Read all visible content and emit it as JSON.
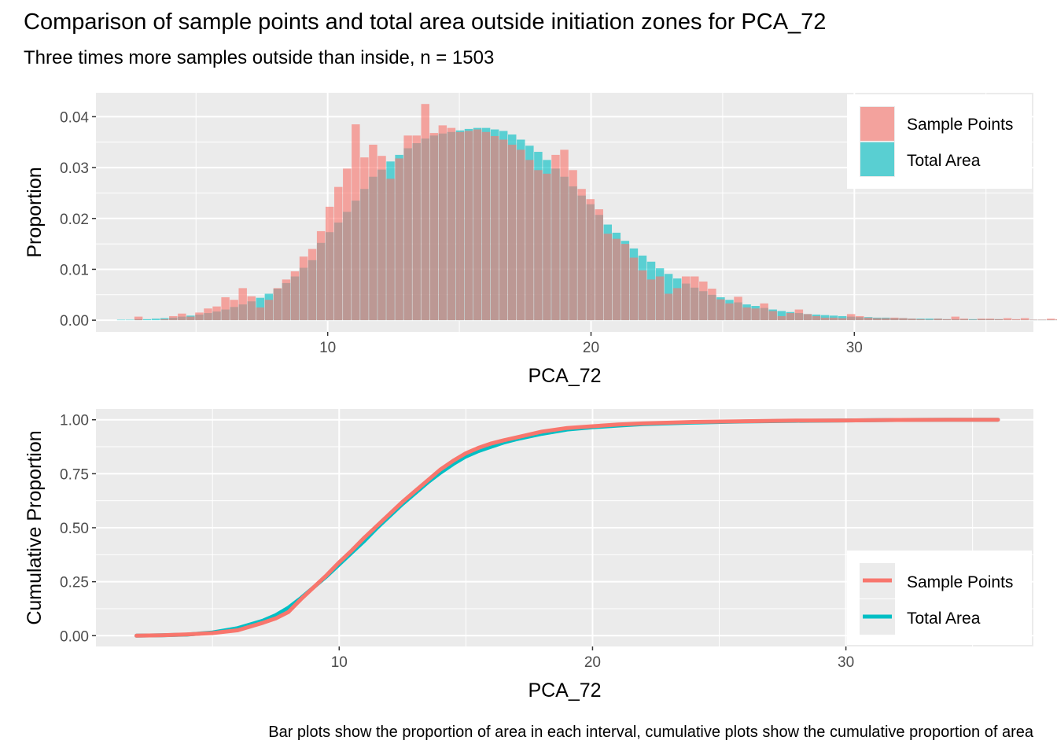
{
  "title": "Comparison of sample points and total area outside initiation zones for PCA_72",
  "subtitle": "Three times more samples outside than inside, n = 1503",
  "caption": "Bar plots show the proportion of area in each interval, cumulative plots show the cumulative proportion of area",
  "colors": {
    "sample": "#F8766D",
    "area": "#00BFC4",
    "panel": "#EBEBEB",
    "grid": "#FFFFFF"
  },
  "chart_data": [
    {
      "type": "bar",
      "xlabel": "PCA_72",
      "ylabel": "Proportion",
      "xlim": [
        1.2,
        36.8
      ],
      "ylim": [
        -0.0023,
        0.0447
      ],
      "x_ticks": [
        10,
        20,
        30
      ],
      "y_ticks": [
        0.0,
        0.01,
        0.02,
        0.03,
        0.04
      ],
      "y_tick_labels": [
        "0.00",
        "0.01",
        "0.02",
        "0.03",
        "0.04"
      ],
      "bin_width": 0.33,
      "legend": {
        "position": "top-right",
        "entries": [
          "Sample Points",
          "Total Area"
        ]
      },
      "bin_start": 2.0,
      "series": [
        {
          "name": "Sample Points",
          "values": [
            0,
            0,
            0.0007,
            0,
            0,
            0.0002,
            0.0008,
            0.0013,
            0.0007,
            0.0015,
            0.0023,
            0.0027,
            0.0045,
            0.004,
            0.0063,
            0.0047,
            0.0025,
            0.004,
            0.0063,
            0.008,
            0.0096,
            0.0125,
            0.014,
            0.0175,
            0.0223,
            0.0262,
            0.0298,
            0.0385,
            0.032,
            0.0345,
            0.0323,
            0.0278,
            0.0318,
            0.0363,
            0.0363,
            0.0425,
            0.0368,
            0.0383,
            0.0378,
            0.037,
            0.0372,
            0.0375,
            0.037,
            0.0362,
            0.0355,
            0.0345,
            0.0335,
            0.0315,
            0.0295,
            0.0288,
            0.0325,
            0.0335,
            0.0295,
            0.0258,
            0.0238,
            0.0218,
            0.017,
            0.016,
            0.015,
            0.0123,
            0.0098,
            0.008,
            0.0086,
            0.0052,
            0.0063,
            0.0086,
            0.0086,
            0.0076,
            0.0062,
            0.0041,
            0.0033,
            0.0046,
            0.0025,
            0.0023,
            0.0033,
            0.0018,
            0.0008,
            0.0014,
            0.0021,
            0.0012,
            0.0008,
            0.0005,
            0.0005,
            0.0004,
            0.0012,
            0.0008,
            0.0005,
            0.0004,
            0.0004,
            0.0005,
            0.0004,
            0.0003,
            0.0002,
            0.0001,
            0.0003,
            0.0002,
            0.0007,
            0.0003,
            0.0001,
            0.0003,
            0.0003,
            0.0002,
            0.0004,
            0.0002,
            0.0004,
            0.0001,
            0.0001,
            0.0003,
            0.0002,
            0.0001,
            0.0001,
            0.0004,
            0.0001,
            0.0001,
            0.0004,
            0.0001,
            0.0002,
            0.0001,
            0.0001,
            0.0001,
            0.0001,
            0.0001,
            0.0001,
            0.0001,
            0.0001,
            0.0001,
            0.0001,
            0.0001,
            0.0001,
            0.0001,
            0.0002,
            0.0001,
            0.0001,
            0.0001,
            0.0001,
            0.0001,
            0.0001,
            0.0001,
            0.0001,
            0.0001,
            0.0001,
            0.0001,
            0.0001,
            0.0001,
            0.0001,
            0.0001,
            0.0001,
            0.0001,
            0.0001,
            0.0001,
            0.0001,
            0.0001,
            0.0001,
            0.0001,
            0.0001,
            0.0001,
            0.0001,
            0.0001,
            0.0001,
            0.0001,
            0.0001,
            0.0001,
            0.0001,
            0.0001,
            0.0001,
            0.0001,
            0.0001,
            0.0001,
            0.0001,
            0.0001,
            0.0001,
            0.0001,
            0.0001,
            0.0001,
            0.0001,
            0.0001,
            0.0001,
            0.0001,
            0.0001,
            0.0001,
            0.0001,
            0.0001,
            0.0001,
            0.0001,
            0.0001,
            0.0001,
            0.0001,
            0.0001,
            0.0001,
            0.0001,
            0.0001,
            0.0001,
            0.0001,
            0.0001,
            0.0001,
            0.0001,
            0.0001,
            0.0001,
            0.0001,
            0.0001,
            0.0001,
            0.0001,
            0.0001,
            0.0001,
            0.0001,
            0.0001,
            0.0001,
            0.0001,
            0.0001,
            0.0001,
            0.0001,
            0.0001,
            0.0001,
            0.0001,
            0.0001,
            0.0001,
            0.0001,
            0.0001,
            0.0001,
            0.0001,
            0.0001,
            0.0001,
            0.0001,
            0.0001,
            0.0001,
            0.0001,
            0.0001,
            0.0001,
            0.0001,
            0.0001,
            0.0001,
            0.0001,
            0.0001,
            0.0001,
            0.0001,
            0.0001,
            0.0001,
            0.0001,
            0.0001,
            0.0001,
            0.0001,
            0.0001,
            0.0001,
            0.0001,
            0.0001,
            0.0001,
            0.0001,
            0.0001,
            0.0001,
            0.0001,
            0.0001
          ]
        },
        {
          "name": "Total Area",
          "values": [
            0.0001,
            0.0001,
            0.0002,
            0.0002,
            0.0003,
            0.0004,
            0.0005,
            0.0007,
            0.0009,
            0.0011,
            0.0014,
            0.0017,
            0.0021,
            0.0026,
            0.0031,
            0.0037,
            0.0044,
            0.0052,
            0.0062,
            0.0073,
            0.0086,
            0.0103,
            0.0118,
            0.0152,
            0.0173,
            0.0192,
            0.0213,
            0.0235,
            0.0258,
            0.0282,
            0.0296,
            0.0312,
            0.0325,
            0.0338,
            0.0348,
            0.0357,
            0.0363,
            0.0367,
            0.037,
            0.0373,
            0.0376,
            0.0378,
            0.0378,
            0.0375,
            0.0372,
            0.0365,
            0.0355,
            0.0343,
            0.0331,
            0.0315,
            0.0298,
            0.0282,
            0.0263,
            0.0245,
            0.0228,
            0.0207,
            0.0188,
            0.0172,
            0.0156,
            0.0141,
            0.0127,
            0.0115,
            0.0102,
            0.0091,
            0.0082,
            0.0072,
            0.0064,
            0.0057,
            0.005,
            0.0045,
            0.004,
            0.0035,
            0.0031,
            0.0028,
            0.0024,
            0.0021,
            0.0018,
            0.0016,
            0.0014,
            0.0012,
            0.0011,
            0.001,
            0.0009,
            0.0008,
            0.0007,
            0.0006,
            0.0006,
            0.0005,
            0.0005,
            0.0004,
            0.0004,
            0.0003,
            0.0003,
            0.0003,
            0.0003,
            0.0002,
            0.0002,
            0.0002,
            0.0002,
            0.0002,
            0.0002,
            0.0002,
            0.0001,
            0.0001,
            0.0001,
            0.0001,
            0.0001,
            0.0001,
            0.0001,
            0.0001,
            0.0001,
            0.0001,
            0.0001,
            0.0001,
            0.0001,
            0.0001,
            0.0001,
            0.0001,
            0.0001,
            0.0001,
            0.0001,
            0.0001,
            0.0001,
            0.0001,
            0.0001,
            0.0001,
            0.0001,
            0.0001,
            0.0001,
            0.0001,
            0.0001,
            0.0001,
            0.0001,
            0.0001,
            0.0001,
            0.0001,
            0.0001,
            0.0001,
            0.0001,
            0.0001,
            0.0001,
            0.0001,
            0.0001,
            0.0001,
            0.0001,
            0.0001,
            0.0001,
            0.0001,
            0.0001,
            0.0001,
            0.0001,
            0.0001,
            0.0001,
            0.0001,
            0.0001,
            0.0001,
            0.0001,
            0.0001,
            0.0001,
            0.0001,
            0.0001,
            0.0001,
            0.0001,
            0.0001,
            0.0001,
            0.0001,
            0.0001,
            0.0001,
            0.0001,
            0.0001,
            0.0001,
            0.0001,
            0.0001,
            0.0001,
            0.0001,
            0.0001,
            0.0001,
            0.0001,
            0.0001,
            0.0001,
            0.0001,
            0.0001,
            0.0001,
            0.0001,
            0.0001,
            0.0001,
            0.0001,
            0.0001,
            0.0001,
            0.0001,
            0.0001,
            0.0001,
            0.0001,
            0.0001,
            0.0001,
            0.0001,
            0.0001,
            0.0001,
            0.0001,
            0.0001,
            0.0001,
            0.0001,
            0.0001,
            0.0001,
            0.0001,
            0.0001,
            0.0001,
            0.0001,
            0.0001,
            0.0001,
            0.0001,
            0.0001,
            0.0001,
            0.0001,
            0.0001,
            0.0001,
            0.0001,
            0.0001,
            0.0001,
            0.0001,
            0.0001,
            0.0001,
            0.0001,
            0.0001,
            0.0001,
            0.0001,
            0.0001,
            0.0001,
            0.0001,
            0.0001,
            0.0001,
            0.0001,
            0.0001,
            0.0001,
            0.0001,
            0.0001,
            0.0001,
            0.0001,
            0.0001,
            0.0001,
            0.0001,
            0.0001,
            0.0001,
            0.0001,
            0.0001,
            0.0001
          ]
        }
      ]
    },
    {
      "type": "line",
      "xlabel": "PCA_72",
      "ylabel": "Cumulative Proportion",
      "xlim": [
        0.4,
        37.4
      ],
      "ylim": [
        -0.05,
        1.05
      ],
      "x_ticks": [
        10,
        20,
        30
      ],
      "y_ticks": [
        0.0,
        0.25,
        0.5,
        0.75,
        1.0
      ],
      "y_tick_labels": [
        "0.00",
        "0.25",
        "0.50",
        "0.75",
        "1.00"
      ],
      "legend": {
        "position": "bottom-right",
        "entries": [
          "Sample Points",
          "Total Area"
        ]
      },
      "series": [
        {
          "name": "Total Area",
          "x": [
            2.0,
            3.0,
            4.0,
            5.0,
            6.0,
            7.0,
            7.5,
            8.0,
            8.5,
            9.0,
            9.5,
            10.0,
            10.5,
            11.0,
            11.5,
            12.0,
            12.5,
            13.0,
            13.5,
            14.0,
            14.5,
            15.0,
            15.5,
            16.0,
            16.5,
            17.0,
            18.0,
            19.0,
            20.0,
            21.0,
            22.0,
            24.0,
            26.0,
            28.0,
            30.0,
            32.0,
            34.0,
            36.0
          ],
          "y": [
            0.0,
            0.002,
            0.005,
            0.015,
            0.035,
            0.07,
            0.095,
            0.13,
            0.175,
            0.225,
            0.275,
            0.33,
            0.385,
            0.44,
            0.5,
            0.555,
            0.61,
            0.66,
            0.71,
            0.755,
            0.795,
            0.83,
            0.855,
            0.875,
            0.895,
            0.91,
            0.935,
            0.955,
            0.965,
            0.973,
            0.98,
            0.987,
            0.992,
            0.995,
            0.997,
            0.999,
            1.0,
            1.0
          ]
        },
        {
          "name": "Sample Points",
          "x": [
            2.0,
            3.0,
            4.0,
            5.0,
            6.0,
            7.0,
            7.5,
            8.0,
            8.5,
            9.0,
            9.5,
            10.0,
            10.5,
            11.0,
            11.5,
            12.0,
            12.5,
            13.0,
            13.5,
            14.0,
            14.5,
            15.0,
            15.5,
            16.0,
            16.5,
            17.0,
            18.0,
            19.0,
            20.0,
            21.0,
            22.0,
            24.0,
            26.0,
            28.0,
            30.0,
            32.0,
            34.0,
            36.0
          ],
          "y": [
            0.0,
            0.002,
            0.006,
            0.012,
            0.025,
            0.06,
            0.08,
            0.11,
            0.17,
            0.225,
            0.28,
            0.34,
            0.395,
            0.455,
            0.51,
            0.565,
            0.62,
            0.67,
            0.72,
            0.77,
            0.81,
            0.845,
            0.87,
            0.89,
            0.905,
            0.918,
            0.945,
            0.962,
            0.97,
            0.978,
            0.983,
            0.99,
            0.993,
            0.996,
            0.997,
            0.999,
            1.0,
            1.0
          ]
        }
      ]
    }
  ]
}
